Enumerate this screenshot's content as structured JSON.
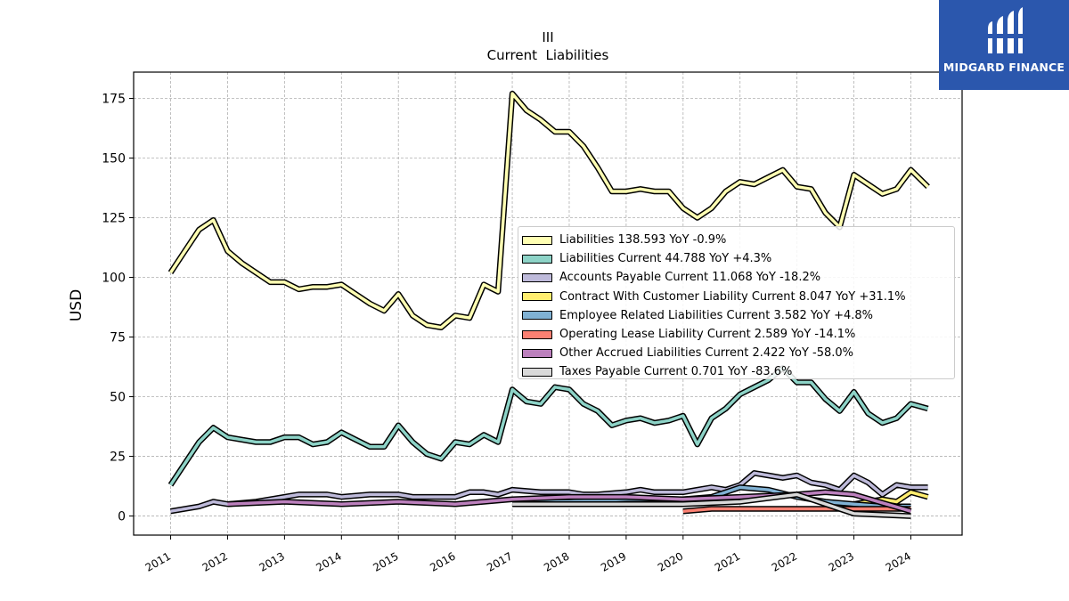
{
  "chart_data": {
    "type": "area",
    "title": "III",
    "subtitle": "Current  Liabilities",
    "ylabel": "USD",
    "xlabel": "",
    "ylim": [
      -8,
      186
    ],
    "xlim": [
      2010.35,
      2024.9
    ],
    "yticks": [
      0,
      25,
      50,
      75,
      100,
      125,
      150,
      175
    ],
    "xticks": [
      "2011",
      "2012",
      "2013",
      "2014",
      "2015",
      "2016",
      "2017",
      "2018",
      "2019",
      "2020",
      "2021",
      "2022",
      "2023",
      "2024"
    ],
    "grid": true,
    "legend_position": "center-right",
    "series": [
      {
        "name": "Liabilities",
        "legend": "Liabilities  138.593 YoY -0.9%",
        "color": "#ffffb3",
        "x": [
          2011.0,
          2011.25,
          2011.5,
          2011.75,
          2012.0,
          2012.25,
          2012.5,
          2012.75,
          2013.0,
          2013.25,
          2013.5,
          2013.75,
          2014.0,
          2014.25,
          2014.5,
          2014.75,
          2015.0,
          2015.25,
          2015.5,
          2015.75,
          2016.0,
          2016.25,
          2016.5,
          2016.75,
          2017.0,
          2017.25,
          2017.5,
          2017.75,
          2018.0,
          2018.25,
          2018.5,
          2018.75,
          2019.0,
          2019.25,
          2019.5,
          2019.75,
          2020.0,
          2020.25,
          2020.5,
          2020.75,
          2021.0,
          2021.25,
          2021.5,
          2021.75,
          2022.0,
          2022.25,
          2022.5,
          2022.75,
          2023.0,
          2023.25,
          2023.5,
          2023.75,
          2024.0,
          2024.3
        ],
        "values": [
          102,
          111,
          120,
          124,
          111,
          106,
          102,
          98,
          98,
          95,
          96,
          96,
          97,
          93,
          89,
          86,
          93,
          84,
          80,
          79,
          84,
          83,
          97,
          94,
          177,
          170,
          166,
          161,
          161,
          155,
          146,
          136,
          136,
          137,
          136,
          136,
          129,
          125,
          129,
          136,
          140,
          139,
          142,
          145,
          138,
          137,
          127,
          121,
          143,
          139,
          135,
          137,
          145,
          138
        ]
      },
      {
        "name": "Liabilities Current",
        "legend": "Liabilities Current  44.788 YoY +4.3%",
        "color": "#8dd3c7",
        "x": [
          2011.0,
          2011.25,
          2011.5,
          2011.75,
          2012.0,
          2012.25,
          2012.5,
          2012.75,
          2013.0,
          2013.25,
          2013.5,
          2013.75,
          2014.0,
          2014.25,
          2014.5,
          2014.75,
          2015.0,
          2015.25,
          2015.5,
          2015.75,
          2016.0,
          2016.25,
          2016.5,
          2016.75,
          2017.0,
          2017.25,
          2017.5,
          2017.75,
          2018.0,
          2018.25,
          2018.5,
          2018.75,
          2019.0,
          2019.25,
          2019.5,
          2019.75,
          2020.0,
          2020.25,
          2020.5,
          2020.75,
          2021.0,
          2021.25,
          2021.5,
          2021.75,
          2022.0,
          2022.25,
          2022.5,
          2022.75,
          2023.0,
          2023.25,
          2023.5,
          2023.75,
          2024.0,
          2024.3
        ],
        "values": [
          13,
          22,
          31,
          37,
          33,
          32,
          31,
          31,
          33,
          33,
          30,
          31,
          35,
          32,
          29,
          29,
          38,
          31,
          26,
          24,
          31,
          30,
          34,
          31,
          53,
          48,
          47,
          54,
          53,
          47,
          44,
          38,
          40,
          41,
          39,
          40,
          42,
          30,
          41,
          45,
          51,
          54,
          57,
          62,
          56,
          56,
          49,
          44,
          52,
          43,
          39,
          41,
          47,
          45
        ]
      },
      {
        "name": "Accounts Payable Current",
        "legend": "Accounts Payable Current  11.068 YoY -18.2%",
        "color": "#bebada",
        "x": [
          2011.0,
          2011.5,
          2011.75,
          2012.0,
          2012.5,
          2013.0,
          2013.25,
          2013.75,
          2014.0,
          2014.5,
          2015.0,
          2015.25,
          2015.5,
          2015.75,
          2016.0,
          2016.25,
          2016.5,
          2016.75,
          2017.0,
          2017.5,
          2018.0,
          2018.25,
          2018.5,
          2019.0,
          2019.25,
          2019.5,
          2020.0,
          2020.25,
          2020.5,
          2020.75,
          2021.0,
          2021.25,
          2021.5,
          2021.75,
          2022.0,
          2022.25,
          2022.5,
          2022.75,
          2023.0,
          2023.25,
          2023.5,
          2023.75,
          2024.0,
          2024.3
        ],
        "values": [
          2,
          4,
          6,
          5,
          6,
          8,
          9,
          9,
          8,
          9,
          9,
          8,
          8,
          8,
          8,
          10,
          10,
          9,
          11,
          10,
          10,
          9,
          9,
          10,
          11,
          10,
          10,
          11,
          12,
          11,
          13,
          18,
          17,
          16,
          17,
          14,
          13,
          11,
          17,
          14,
          9,
          13,
          12,
          12
        ]
      },
      {
        "name": "Contract With Customer Liability Current",
        "legend": "Contract With Customer Liability Current  8.047 YoY +31.1%",
        "color": "#ffed6f",
        "x": [
          2023.0,
          2023.25,
          2023.5,
          2023.75,
          2024.0,
          2024.3
        ],
        "values": [
          5,
          6,
          7,
          6,
          10,
          8
        ]
      },
      {
        "name": "Employee Related Liabilities Current",
        "legend": "Employee Related Liabilities Current  3.582 YoY +4.8%",
        "color": "#80b1d3",
        "x": [
          2017.0,
          2018.0,
          2019.0,
          2019.5,
          2020.0,
          2020.5,
          2021.0,
          2021.5,
          2022.0,
          2022.5,
          2023.0,
          2023.5,
          2024.0
        ],
        "values": [
          6,
          6,
          7,
          7,
          7,
          8,
          12,
          11,
          8,
          6,
          5,
          4,
          4
        ]
      },
      {
        "name": "Operating Lease Liability Current",
        "legend": "Operating Lease Liability Current  2.589 YoY -14.1%",
        "color": "#fb8072",
        "x": [
          2020.0,
          2020.5,
          2021.0,
          2021.5,
          2022.0,
          2022.5,
          2023.0,
          2023.5,
          2024.0
        ],
        "values": [
          2,
          3,
          3,
          3,
          3,
          3,
          3,
          3,
          3
        ]
      },
      {
        "name": "Other Accrued Liabilities Current",
        "legend": "Other Accrued Liabilities Current  2.422 YoY -58.0%",
        "color": "#bc80bd",
        "x": [
          2012.0,
          2013.0,
          2014.0,
          2015.0,
          2016.0,
          2017.0,
          2018.0,
          2019.0,
          2020.0,
          2021.0,
          2022.0,
          2022.5,
          2023.0,
          2024.0
        ],
        "values": [
          5,
          6,
          5,
          6,
          5,
          7,
          8,
          8,
          7,
          8,
          9,
          10,
          9,
          2
        ]
      },
      {
        "name": "Taxes Payable Current",
        "legend": "Taxes Payable Current  0.701 YoY -83.6%",
        "color": "#d9d9d9",
        "x": [
          2017.0,
          2018.0,
          2019.0,
          2020.0,
          2021.0,
          2022.0,
          2023.0,
          2024.0
        ],
        "values": [
          5,
          5,
          5,
          5,
          6,
          9,
          1,
          0
        ]
      }
    ]
  },
  "logo": {
    "text": "MIDGARD FINANCE"
  }
}
